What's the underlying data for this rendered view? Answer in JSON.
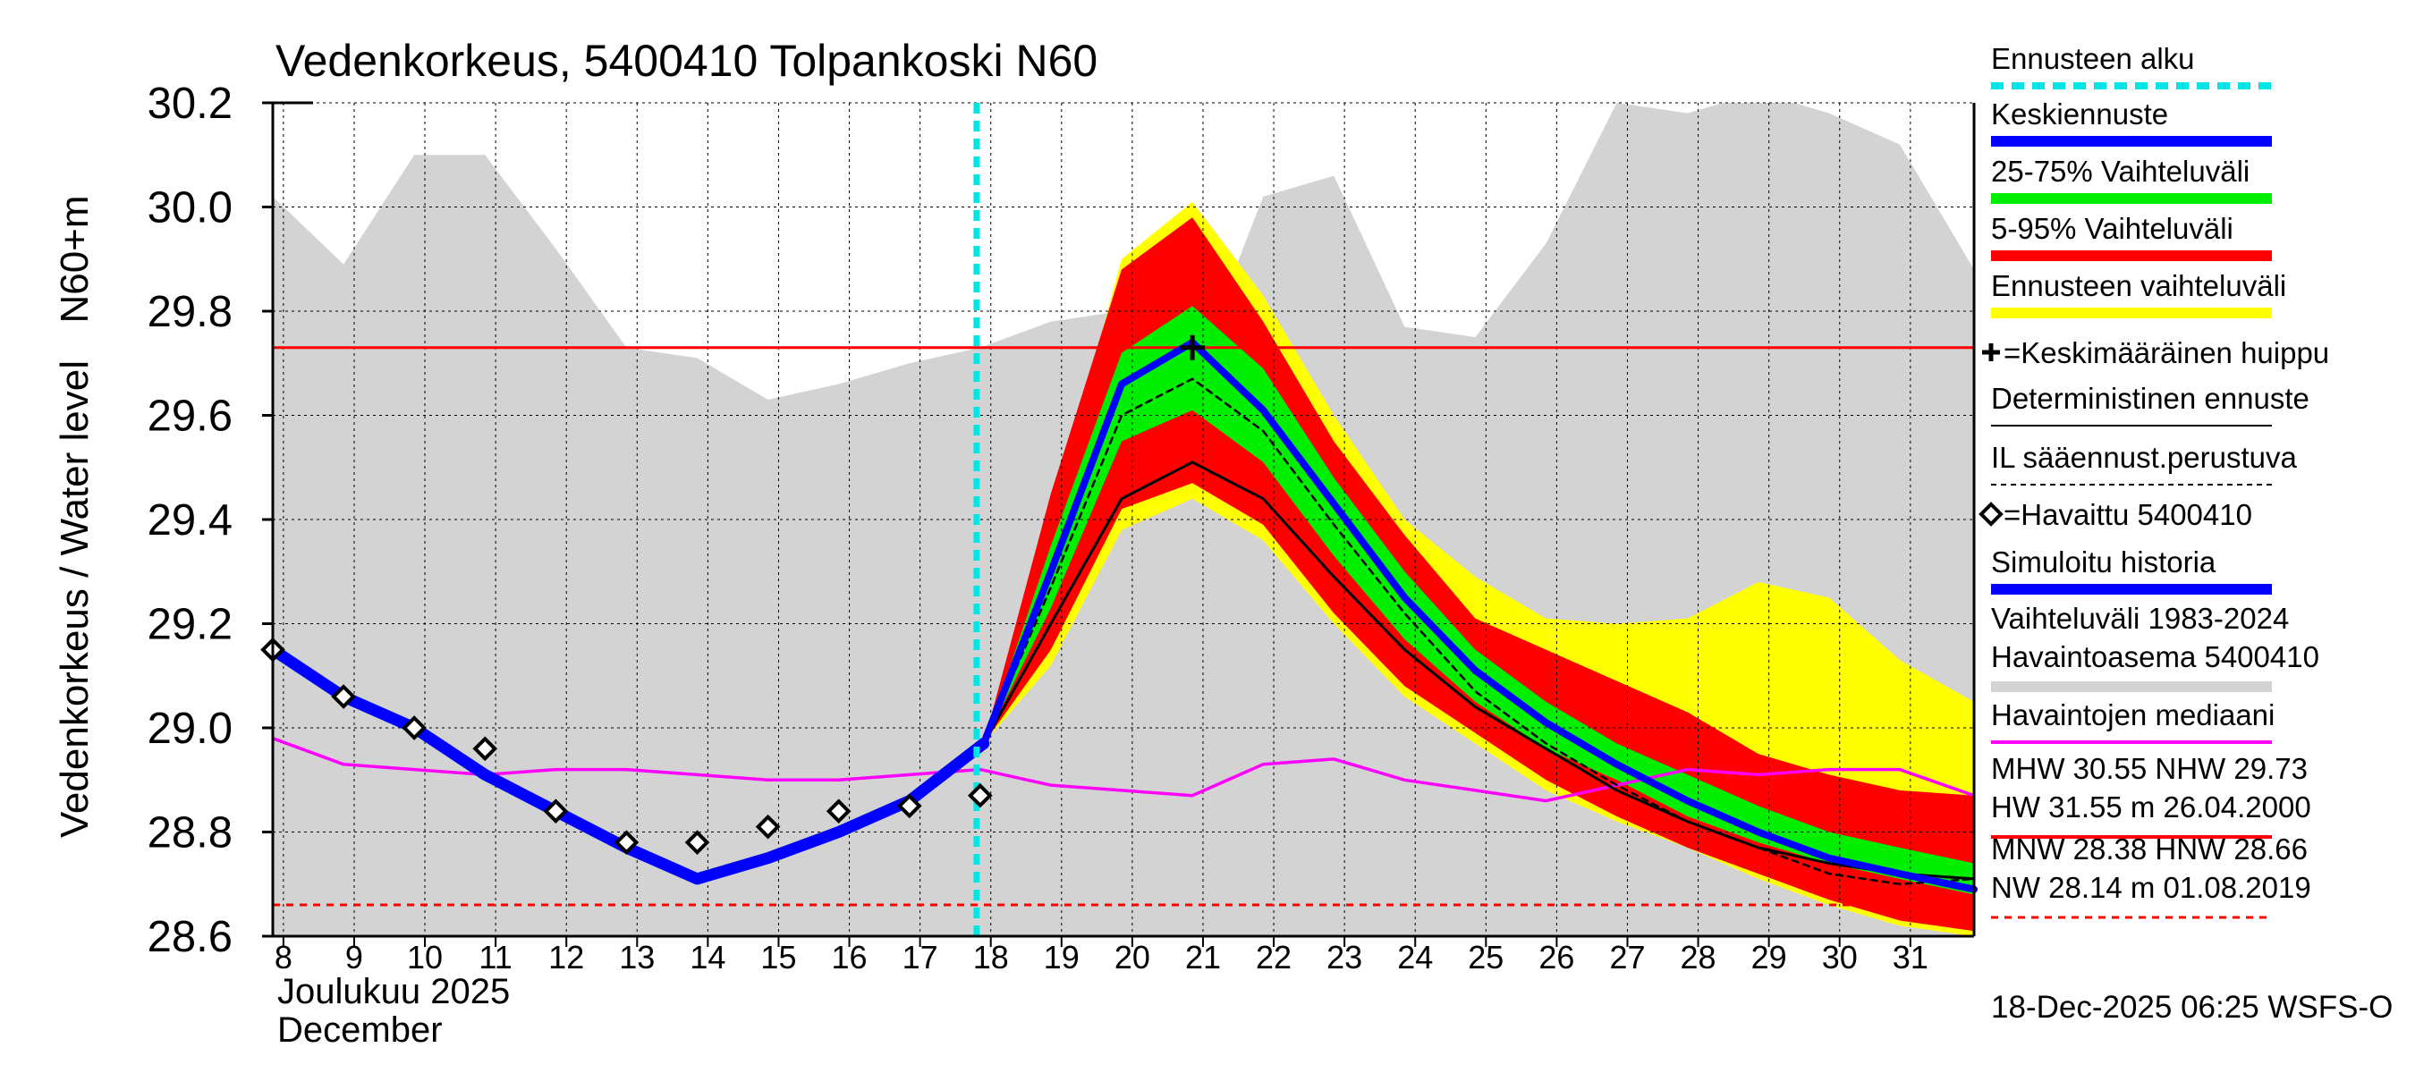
{
  "chart_data": {
    "type": "line",
    "title": "Vedenkorkeus, 5400410 Tolpankoski N60",
    "ylabel_upper": "N60+m",
    "ylabel_lower": "Vedenkorkeus / Water level",
    "xlabel_fi": "Joulukuu  2025",
    "xlabel_en": "December",
    "footer": "18-Dec-2025 06:25 WSFS-O",
    "x_range": [
      7.85,
      31.9
    ],
    "ylim": [
      28.6,
      30.2
    ],
    "y_ticks": [
      "28.6",
      "28.8",
      "29.0",
      "29.2",
      "29.4",
      "29.6",
      "29.8",
      "30.0",
      "30.2"
    ],
    "x_ticks": [
      "8",
      "9",
      "10",
      "11",
      "12",
      "13",
      "14",
      "15",
      "16",
      "17",
      "18",
      "19",
      "20",
      "21",
      "22",
      "23",
      "24",
      "25",
      "26",
      "27",
      "28",
      "29",
      "30",
      "31"
    ],
    "forecast_start": 17.8,
    "reference_lines": {
      "NHW": 29.73,
      "HNW": 28.66
    },
    "colors": {
      "forecast_start": "#00e5e5",
      "mean_forecast": "#0000ff",
      "band_25_75": "#00ee00",
      "band_5_95": "#ff0000",
      "band_total": "#ffff00",
      "deterministic": "#000000",
      "historical_range": "#d3d3d3",
      "median": "#ff00ff",
      "nhw_line": "#ff0000",
      "hnw_line": "#ff0000"
    },
    "series": [
      {
        "name": "Vaihteluväli 1983-2024 upper",
        "x": [
          7.85,
          8.85,
          9.85,
          10.85,
          11.85,
          12.85,
          13.85,
          14.85,
          15.85,
          16.85,
          17.85,
          18.85,
          19.85,
          20.85,
          21.85,
          22.85,
          23.85,
          24.85,
          25.85,
          26.85,
          27.85,
          28.85,
          29.85,
          30.85,
          31.9
        ],
        "values": [
          30.02,
          29.89,
          30.1,
          30.1,
          29.92,
          29.73,
          29.71,
          29.63,
          29.66,
          29.7,
          29.73,
          29.78,
          29.8,
          29.67,
          30.02,
          30.06,
          29.77,
          29.75,
          29.93,
          30.2,
          30.18,
          30.22,
          30.18,
          30.12,
          29.88
        ]
      },
      {
        "name": "Vaihteluväli 1983-2024 lower",
        "x": [
          7.85,
          31.9
        ],
        "values": [
          28.6,
          28.6
        ]
      },
      {
        "name": "Ennusteen vaihteluväli upper",
        "x": [
          17.9,
          18.85,
          19.85,
          20.85,
          21.85,
          22.85,
          23.85,
          24.85,
          25.85,
          26.85,
          27.85,
          28.85,
          29.85,
          30.85,
          31.9
        ],
        "values": [
          28.97,
          29.4,
          29.9,
          30.01,
          29.83,
          29.6,
          29.4,
          29.29,
          29.21,
          29.2,
          29.21,
          29.28,
          29.25,
          29.13,
          29.05
        ]
      },
      {
        "name": "Ennusteen vaihteluväli lower",
        "x": [
          17.9,
          18.85,
          19.85,
          20.85,
          21.85,
          22.85,
          23.85,
          24.85,
          25.85,
          26.85,
          27.85,
          28.85,
          29.85,
          30.85,
          31.9
        ],
        "values": [
          28.97,
          29.12,
          29.38,
          29.44,
          29.36,
          29.2,
          29.06,
          28.97,
          28.88,
          28.82,
          28.77,
          28.71,
          28.66,
          28.62,
          28.6
        ]
      },
      {
        "name": "5-95% Vaihteluväli upper",
        "x": [
          17.9,
          18.85,
          19.85,
          20.85,
          21.85,
          22.85,
          23.85,
          24.85,
          25.85,
          26.85,
          27.85,
          28.85,
          29.85,
          30.85,
          31.9
        ],
        "values": [
          28.97,
          29.45,
          29.88,
          29.98,
          29.78,
          29.55,
          29.37,
          29.21,
          29.15,
          29.09,
          29.03,
          28.95,
          28.91,
          28.88,
          28.87
        ]
      },
      {
        "name": "5-95% Vaihteluväli lower",
        "x": [
          17.9,
          18.85,
          19.85,
          20.85,
          21.85,
          22.85,
          23.85,
          24.85,
          25.85,
          26.85,
          27.85,
          28.85,
          29.85,
          30.85,
          31.9
        ],
        "values": [
          28.97,
          29.15,
          29.42,
          29.47,
          29.39,
          29.22,
          29.08,
          28.99,
          28.9,
          28.83,
          28.77,
          28.72,
          28.67,
          28.63,
          28.61
        ]
      },
      {
        "name": "25-75% Vaihteluväli upper",
        "x": [
          17.9,
          18.85,
          19.85,
          20.85,
          21.85,
          22.85,
          23.85,
          24.85,
          25.85,
          26.85,
          27.85,
          28.85,
          29.85,
          30.85,
          31.9
        ],
        "values": [
          28.97,
          29.35,
          29.72,
          29.81,
          29.69,
          29.48,
          29.3,
          29.15,
          29.05,
          28.97,
          28.91,
          28.85,
          28.8,
          28.77,
          28.74
        ]
      },
      {
        "name": "25-75% Vaihteluväli lower",
        "x": [
          17.9,
          18.85,
          19.85,
          20.85,
          21.85,
          22.85,
          23.85,
          24.85,
          25.85,
          26.85,
          27.85,
          28.85,
          29.85,
          30.85,
          31.9
        ],
        "values": [
          28.97,
          29.23,
          29.55,
          29.61,
          29.51,
          29.33,
          29.17,
          29.05,
          28.96,
          28.9,
          28.83,
          28.78,
          28.74,
          28.71,
          28.68
        ]
      },
      {
        "name": "Keskiennuste",
        "x": [
          17.9,
          18.85,
          19.85,
          20.85,
          21.85,
          22.85,
          23.85,
          24.85,
          25.85,
          26.85,
          27.85,
          28.85,
          29.85,
          30.85,
          31.9
        ],
        "values": [
          28.97,
          29.3,
          29.66,
          29.74,
          29.61,
          29.43,
          29.25,
          29.11,
          29.01,
          28.93,
          28.86,
          28.8,
          28.75,
          28.72,
          28.69
        ]
      },
      {
        "name": "IL sääennust.perustuva",
        "x": [
          17.9,
          18.85,
          19.85,
          20.85,
          21.85,
          22.85,
          23.85,
          24.85,
          25.85,
          26.85,
          27.85,
          28.85,
          29.85,
          30.85,
          31.9
        ],
        "values": [
          28.97,
          29.27,
          29.6,
          29.67,
          29.57,
          29.39,
          29.22,
          29.07,
          28.97,
          28.89,
          28.82,
          28.77,
          28.72,
          28.7,
          28.71
        ]
      },
      {
        "name": "Deterministinen ennuste",
        "x": [
          17.9,
          18.85,
          19.85,
          20.85,
          21.85,
          22.85,
          23.85,
          24.85,
          25.85,
          26.85,
          27.85,
          28.85,
          29.85,
          30.85,
          31.9
        ],
        "values": [
          28.97,
          29.2,
          29.44,
          29.51,
          29.44,
          29.29,
          29.15,
          29.04,
          28.96,
          28.88,
          28.82,
          28.77,
          28.74,
          28.72,
          28.71
        ]
      },
      {
        "name": "Simuloitu historia",
        "x": [
          7.85,
          8.85,
          9.85,
          10.85,
          11.85,
          12.85,
          13.85,
          14.85,
          15.85,
          16.85,
          17.9
        ],
        "values": [
          29.15,
          29.06,
          29.0,
          28.91,
          28.84,
          28.77,
          28.71,
          28.75,
          28.8,
          28.86,
          28.97
        ]
      },
      {
        "name": "Havaittu 5400410",
        "x": [
          7.85,
          8.85,
          9.85,
          10.85,
          11.85,
          12.85,
          13.85,
          14.85,
          15.85,
          16.85,
          17.85
        ],
        "values": [
          29.15,
          29.06,
          29.0,
          28.96,
          28.84,
          28.78,
          28.78,
          28.81,
          28.84,
          28.85,
          28.87
        ]
      },
      {
        "name": "Havaintojen mediaani",
        "x": [
          7.85,
          8.85,
          9.85,
          10.85,
          11.85,
          12.85,
          13.85,
          14.85,
          15.85,
          16.85,
          17.85,
          18.85,
          19.85,
          20.85,
          21.85,
          22.85,
          23.85,
          24.85,
          25.85,
          26.85,
          27.85,
          28.85,
          29.85,
          30.85,
          31.9
        ],
        "values": [
          28.98,
          28.93,
          28.92,
          28.91,
          28.92,
          28.92,
          28.91,
          28.9,
          28.9,
          28.91,
          28.92,
          28.89,
          28.88,
          28.87,
          28.93,
          28.94,
          28.9,
          28.88,
          28.86,
          28.89,
          28.92,
          28.91,
          28.92,
          28.92,
          28.87
        ]
      }
    ],
    "mean_peak": {
      "x": 20.85,
      "y": 29.73
    },
    "legend": [
      {
        "label": "Ennusteen alku",
        "style": "dashed-thick",
        "color": "#00e5e5"
      },
      {
        "label": "Keskiennuste",
        "style": "thick",
        "color": "#0000ff"
      },
      {
        "label": "25-75% Vaihteluväli",
        "style": "thick",
        "color": "#00ee00"
      },
      {
        "label": "5-95% Vaihteluväli",
        "style": "thick",
        "color": "#ff0000"
      },
      {
        "label": "Ennusteen vaihteluväli",
        "style": "thick",
        "color": "#ffff00"
      },
      {
        "label": "=Keskimääräinen huippu",
        "style": "plus-marker",
        "color": "#000000"
      },
      {
        "label": "Deterministinen ennuste",
        "style": "thin",
        "color": "#000000"
      },
      {
        "label": "IL sääennust.perustuva",
        "style": "dashed-thin",
        "color": "#000000"
      },
      {
        "label": "=Havaittu 5400410",
        "style": "diamond-marker",
        "color": "#000000"
      },
      {
        "label": "Simuloitu historia",
        "style": "thick",
        "color": "#0000ff"
      },
      {
        "label": "Vaihteluväli 1983-2024",
        "label2": "Havaintoasema 5400410",
        "style": "thick",
        "color": "#d3d3d3"
      },
      {
        "label": "Havaintojen mediaani",
        "style": "medium",
        "color": "#ff00ff"
      },
      {
        "label": "MHW  30.55 NHW  29.73",
        "label2": "HW  31.55 m 26.04.2000",
        "style": "medium",
        "color": "#ff0000"
      },
      {
        "label": "MNW  28.38 HNW  28.66",
        "label2": "NW  28.14 m 01.08.2019",
        "style": "dashed-medium",
        "color": "#ff0000"
      }
    ]
  }
}
